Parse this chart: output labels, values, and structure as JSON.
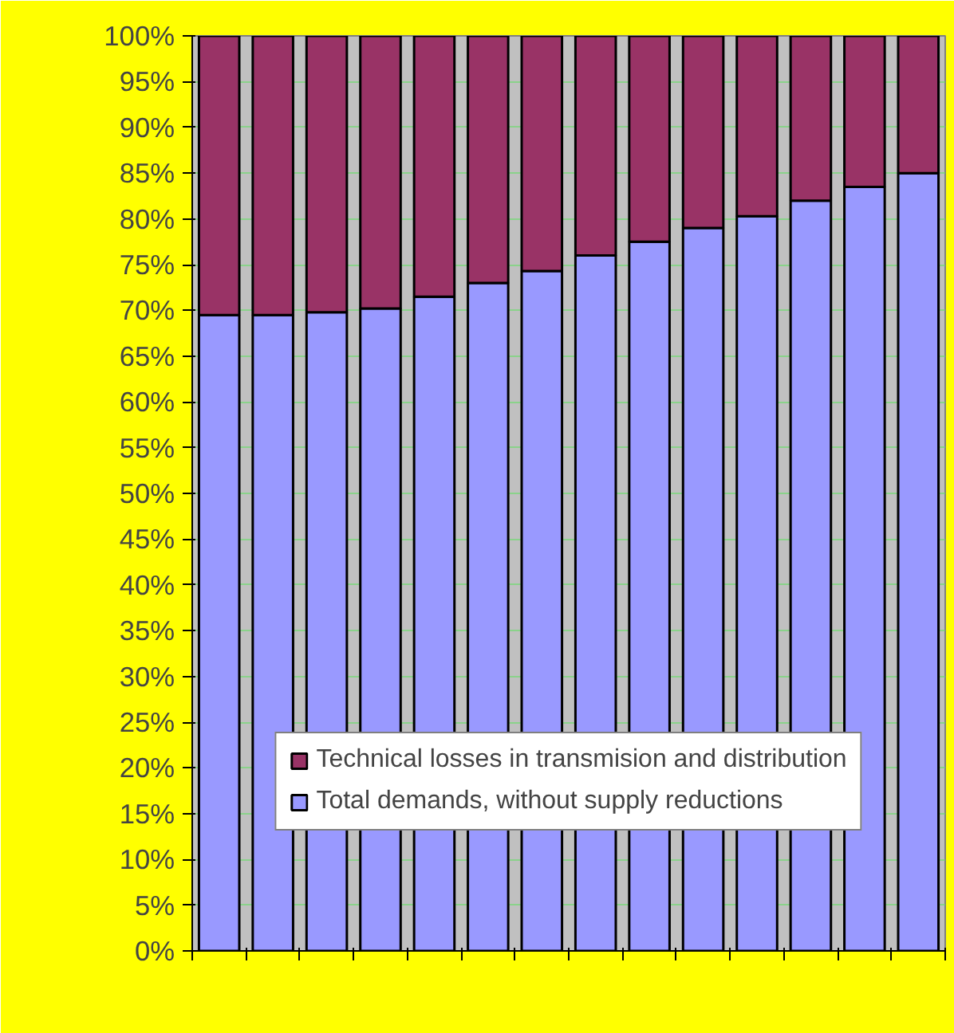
{
  "chart_data": {
    "type": "bar",
    "stacked": true,
    "categories": [
      null,
      null,
      null,
      null,
      null,
      null,
      null,
      null,
      null,
      null,
      null,
      null,
      null,
      null
    ],
    "series": [
      {
        "name": "Total demands, without supply reductions",
        "color": "#9999ff",
        "values": [
          69.5,
          69.5,
          69.8,
          70.2,
          71.5,
          73,
          74.3,
          76,
          77.5,
          79,
          80.3,
          82,
          83.5,
          85
        ]
      },
      {
        "name": "Technical losses in transmision and distribution",
        "color": "#993366",
        "values": [
          30.5,
          30.5,
          30.2,
          29.8,
          28.5,
          27,
          25.7,
          24,
          22.5,
          21,
          19.7,
          18,
          16.5,
          15
        ]
      }
    ],
    "ylim": [
      0,
      100
    ],
    "yticks": [
      {
        "value": 0,
        "label": "0%"
      },
      {
        "value": 5,
        "label": "5%"
      },
      {
        "value": 10,
        "label": "10%"
      },
      {
        "value": 15,
        "label": "15%"
      },
      {
        "value": 20,
        "label": "20%"
      },
      {
        "value": 25,
        "label": "25%"
      },
      {
        "value": 30,
        "label": "30%"
      },
      {
        "value": 35,
        "label": "35%"
      },
      {
        "value": 40,
        "label": "40%"
      },
      {
        "value": 45,
        "label": "45%"
      },
      {
        "value": 50,
        "label": "50%"
      },
      {
        "value": 55,
        "label": "55%"
      },
      {
        "value": 60,
        "label": "60%"
      },
      {
        "value": 65,
        "label": "65%"
      },
      {
        "value": 70,
        "label": "70%"
      },
      {
        "value": 75,
        "label": "75%"
      },
      {
        "value": 80,
        "label": "80%"
      },
      {
        "value": 85,
        "label": "85%"
      },
      {
        "value": 90,
        "label": "90%"
      },
      {
        "value": 95,
        "label": "95%"
      },
      {
        "value": 100,
        "label": "100%"
      }
    ],
    "grid": "y",
    "legend": "bottom",
    "tick_labels": "y"
  }
}
